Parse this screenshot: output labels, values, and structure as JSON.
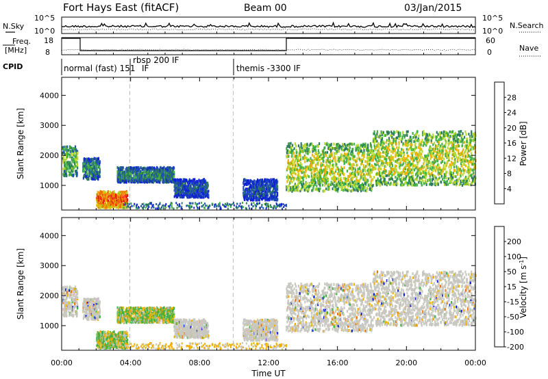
{
  "header": {
    "station": "Fort Hays East (fitACF)",
    "beam": "Beam 00",
    "date": "03/Jan/2015"
  },
  "noise_panel": {
    "left_label": "N.Sky",
    "right_label": "N.Search",
    "left_ticks": [
      "10^5",
      "10^0"
    ],
    "right_ticks": [
      "10^5",
      "10^0"
    ]
  },
  "freq_panel": {
    "left_label_line1": "Freq.",
    "left_label_line2": "[MHz]",
    "right_label": "Nave",
    "left_ticks": [
      "18",
      "8"
    ],
    "right_ticks": [
      "60",
      "0"
    ]
  },
  "cpid": {
    "label": "CPID",
    "segments": [
      {
        "text": "normal (fast) 151",
        "start_hour": 0.0
      },
      {
        "text": "rbsp 200 IF",
        "start_hour": 3.95
      },
      {
        "text": "themis -3300 IF",
        "start_hour": 9.95
      }
    ],
    "suffix_text": "IF"
  },
  "chart_data": [
    {
      "type": "heatmap",
      "name": "power",
      "ylabel": "Slant Range [km]",
      "ylim": [
        180,
        4600
      ],
      "yticks": [
        1000,
        2000,
        3000,
        4000
      ],
      "colorbar_label": "Power [dB]",
      "colorbar_ticks": [
        "4",
        "8",
        "12",
        "16",
        "20",
        "24",
        "28"
      ],
      "colorbar_range": [
        0,
        32
      ],
      "colors": [
        "#1020d8",
        "#1f4fb0",
        "#2d7a5e",
        "#43b043",
        "#b8d830",
        "#f0b000",
        "#f07000",
        "#e81010"
      ],
      "x_range_hours": [
        0,
        24
      ],
      "echo_regions": [
        {
          "start_hour": 0.0,
          "end_hour": 0.9,
          "range_low": 1300,
          "range_high": 2300,
          "level": 3
        },
        {
          "start_hour": 1.2,
          "end_hour": 2.2,
          "range_low": 1200,
          "range_high": 1900,
          "level": 2
        },
        {
          "start_hour": 2.0,
          "end_hour": 3.8,
          "range_low": 250,
          "range_high": 800,
          "level": 6
        },
        {
          "start_hour": 3.2,
          "end_hour": 6.5,
          "range_low": 1100,
          "range_high": 1600,
          "level": 2
        },
        {
          "start_hour": 6.5,
          "end_hour": 8.5,
          "range_low": 600,
          "range_high": 1200,
          "level": 1
        },
        {
          "start_hour": 10.5,
          "end_hour": 12.5,
          "range_low": 500,
          "range_high": 1200,
          "level": 1
        },
        {
          "start_hour": 13.0,
          "end_hour": 18.0,
          "range_low": 800,
          "range_high": 2400,
          "level": 4
        },
        {
          "start_hour": 18.0,
          "end_hour": 24.0,
          "range_low": 1000,
          "range_high": 2800,
          "level": 4
        }
      ]
    },
    {
      "type": "heatmap",
      "name": "velocity",
      "ylabel": "Slant Range [km]",
      "ylim": [
        180,
        4600
      ],
      "yticks": [
        1000,
        2000,
        3000,
        4000
      ],
      "colorbar_label": "Velocity [m s^-1]",
      "colorbar_ticks": [
        "200",
        "100",
        "50",
        "15",
        "-15",
        "-50",
        "-100",
        "-200"
      ],
      "colors": [
        "#1020d8",
        "#2060b0",
        "#2d7a5e",
        "#43b043",
        "#c8c8c0",
        "#f0b000",
        "#f07000",
        "#e81010"
      ],
      "x_range_hours": [
        0,
        24
      ],
      "xlabel": "Time UT",
      "xticks": [
        "00:00",
        "04:00",
        "08:00",
        "12:00",
        "16:00",
        "20:00",
        "00:00"
      ]
    }
  ]
}
